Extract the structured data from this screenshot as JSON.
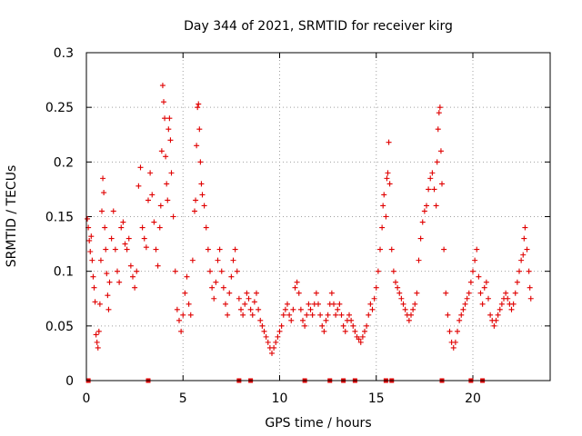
{
  "colors": {
    "series": "#e00000",
    "grid": "#a0a0a0",
    "frame": "#000000"
  },
  "chart_data": {
    "type": "scatter",
    "title": "Day 344 of 2021, SRMTID for receiver kirg",
    "xlabel": "GPS time / hours",
    "ylabel": "SRMTID / TECUs",
    "xlim": [
      0,
      24
    ],
    "ylim": [
      0,
      0.3
    ],
    "grid": true,
    "marker": "+",
    "x_ticks": [
      0,
      5,
      10,
      15,
      20
    ],
    "x_tick_labels": [
      "0",
      "5",
      "10",
      "15",
      "20"
    ],
    "y_ticks": [
      0,
      0.05,
      0.1,
      0.15,
      0.2,
      0.25,
      0.3
    ],
    "y_tick_labels": [
      "0",
      "0.05",
      "0.1",
      "0.15",
      "0.2",
      "0.25",
      "0.3"
    ],
    "series": [
      {
        "name": "SRMTID",
        "points": [
          [
            0.05,
            0.148
          ],
          [
            0.1,
            0.14
          ],
          [
            0.15,
            0.128
          ],
          [
            0.2,
            0.118
          ],
          [
            0.25,
            0.132
          ],
          [
            0.3,
            0.11
          ],
          [
            0.35,
            0.095
          ],
          [
            0.4,
            0.085
          ],
          [
            0.45,
            0.072
          ],
          [
            0.5,
            0.042
          ],
          [
            0.55,
            0.035
          ],
          [
            0.6,
            0.03
          ],
          [
            0.65,
            0.045
          ],
          [
            0.7,
            0.07
          ],
          [
            0.75,
            0.11
          ],
          [
            0.8,
            0.155
          ],
          [
            0.85,
            0.185
          ],
          [
            0.9,
            0.172
          ],
          [
            0.95,
            0.14
          ],
          [
            1.0,
            0.12
          ],
          [
            1.05,
            0.098
          ],
          [
            1.1,
            0.078
          ],
          [
            1.15,
            0.065
          ],
          [
            1.2,
            0.09
          ],
          [
            1.3,
            0.13
          ],
          [
            1.4,
            0.155
          ],
          [
            1.5,
            0.12
          ],
          [
            1.6,
            0.1
          ],
          [
            1.7,
            0.09
          ],
          [
            1.8,
            0.14
          ],
          [
            1.9,
            0.145
          ],
          [
            2.0,
            0.125
          ],
          [
            2.1,
            0.12
          ],
          [
            2.2,
            0.13
          ],
          [
            2.3,
            0.105
          ],
          [
            2.4,
            0.095
          ],
          [
            2.5,
            0.085
          ],
          [
            2.6,
            0.1
          ],
          [
            2.7,
            0.178
          ],
          [
            2.8,
            0.195
          ],
          [
            2.9,
            0.14
          ],
          [
            3.0,
            0.13
          ],
          [
            3.1,
            0.122
          ],
          [
            3.2,
            0.165
          ],
          [
            3.3,
            0.19
          ],
          [
            3.4,
            0.17
          ],
          [
            3.5,
            0.145
          ],
          [
            3.6,
            0.12
          ],
          [
            3.7,
            0.105
          ],
          [
            3.8,
            0.14
          ],
          [
            3.85,
            0.16
          ],
          [
            3.9,
            0.21
          ],
          [
            3.95,
            0.27
          ],
          [
            4.0,
            0.255
          ],
          [
            4.05,
            0.24
          ],
          [
            4.1,
            0.205
          ],
          [
            4.15,
            0.18
          ],
          [
            4.2,
            0.165
          ],
          [
            4.25,
            0.23
          ],
          [
            4.3,
            0.24
          ],
          [
            4.35,
            0.22
          ],
          [
            4.4,
            0.19
          ],
          [
            4.5,
            0.15
          ],
          [
            4.6,
            0.1
          ],
          [
            4.7,
            0.065
          ],
          [
            4.8,
            0.055
          ],
          [
            4.9,
            0.045
          ],
          [
            5.0,
            0.06
          ],
          [
            5.1,
            0.08
          ],
          [
            5.2,
            0.095
          ],
          [
            5.3,
            0.07
          ],
          [
            5.4,
            0.06
          ],
          [
            5.5,
            0.11
          ],
          [
            5.6,
            0.155
          ],
          [
            5.65,
            0.165
          ],
          [
            5.7,
            0.215
          ],
          [
            5.75,
            0.25
          ],
          [
            5.8,
            0.253
          ],
          [
            5.85,
            0.23
          ],
          [
            5.9,
            0.2
          ],
          [
            5.95,
            0.18
          ],
          [
            6.0,
            0.17
          ],
          [
            6.1,
            0.16
          ],
          [
            6.2,
            0.14
          ],
          [
            6.3,
            0.12
          ],
          [
            6.4,
            0.1
          ],
          [
            6.5,
            0.085
          ],
          [
            6.6,
            0.075
          ],
          [
            6.7,
            0.09
          ],
          [
            6.8,
            0.11
          ],
          [
            6.9,
            0.12
          ],
          [
            7.0,
            0.1
          ],
          [
            7.1,
            0.085
          ],
          [
            7.2,
            0.07
          ],
          [
            7.3,
            0.06
          ],
          [
            7.4,
            0.08
          ],
          [
            7.5,
            0.095
          ],
          [
            7.6,
            0.11
          ],
          [
            7.7,
            0.12
          ],
          [
            7.8,
            0.1
          ],
          [
            7.9,
            0.075
          ],
          [
            8.0,
            0.065
          ],
          [
            8.1,
            0.06
          ],
          [
            8.2,
            0.07
          ],
          [
            8.3,
            0.08
          ],
          [
            8.4,
            0.075
          ],
          [
            8.5,
            0.065
          ],
          [
            8.6,
            0.06
          ],
          [
            8.7,
            0.072
          ],
          [
            8.8,
            0.08
          ],
          [
            8.9,
            0.065
          ],
          [
            9.0,
            0.055
          ],
          [
            9.1,
            0.05
          ],
          [
            9.2,
            0.045
          ],
          [
            9.3,
            0.04
          ],
          [
            9.4,
            0.035
          ],
          [
            9.5,
            0.03
          ],
          [
            9.6,
            0.025
          ],
          [
            9.7,
            0.03
          ],
          [
            9.8,
            0.035
          ],
          [
            9.9,
            0.04
          ],
          [
            10.0,
            0.045
          ],
          [
            10.1,
            0.05
          ],
          [
            10.2,
            0.06
          ],
          [
            10.3,
            0.065
          ],
          [
            10.4,
            0.07
          ],
          [
            10.5,
            0.06
          ],
          [
            10.6,
            0.055
          ],
          [
            10.7,
            0.065
          ],
          [
            10.8,
            0.085
          ],
          [
            10.9,
            0.09
          ],
          [
            11.0,
            0.08
          ],
          [
            11.1,
            0.065
          ],
          [
            11.2,
            0.055
          ],
          [
            11.3,
            0.05
          ],
          [
            11.4,
            0.06
          ],
          [
            11.5,
            0.07
          ],
          [
            11.6,
            0.065
          ],
          [
            11.7,
            0.06
          ],
          [
            11.8,
            0.07
          ],
          [
            11.9,
            0.08
          ],
          [
            12.0,
            0.07
          ],
          [
            12.1,
            0.06
          ],
          [
            12.2,
            0.05
          ],
          [
            12.3,
            0.045
          ],
          [
            12.4,
            0.055
          ],
          [
            12.5,
            0.06
          ],
          [
            12.6,
            0.07
          ],
          [
            12.7,
            0.08
          ],
          [
            12.8,
            0.07
          ],
          [
            12.9,
            0.06
          ],
          [
            13.0,
            0.065
          ],
          [
            13.1,
            0.07
          ],
          [
            13.2,
            0.06
          ],
          [
            13.3,
            0.05
          ],
          [
            13.4,
            0.045
          ],
          [
            13.5,
            0.055
          ],
          [
            13.6,
            0.06
          ],
          [
            13.7,
            0.055
          ],
          [
            13.8,
            0.05
          ],
          [
            13.9,
            0.045
          ],
          [
            14.0,
            0.04
          ],
          [
            14.1,
            0.038
          ],
          [
            14.2,
            0.035
          ],
          [
            14.3,
            0.04
          ],
          [
            14.4,
            0.045
          ],
          [
            14.5,
            0.05
          ],
          [
            14.6,
            0.06
          ],
          [
            14.7,
            0.07
          ],
          [
            14.8,
            0.065
          ],
          [
            14.9,
            0.075
          ],
          [
            15.0,
            0.085
          ],
          [
            15.1,
            0.1
          ],
          [
            15.2,
            0.12
          ],
          [
            15.3,
            0.14
          ],
          [
            15.35,
            0.16
          ],
          [
            15.4,
            0.17
          ],
          [
            15.5,
            0.15
          ],
          [
            15.55,
            0.185
          ],
          [
            15.6,
            0.19
          ],
          [
            15.65,
            0.218
          ],
          [
            15.7,
            0.18
          ],
          [
            15.8,
            0.12
          ],
          [
            15.9,
            0.1
          ],
          [
            16.0,
            0.09
          ],
          [
            16.1,
            0.085
          ],
          [
            16.2,
            0.08
          ],
          [
            16.3,
            0.075
          ],
          [
            16.4,
            0.07
          ],
          [
            16.5,
            0.065
          ],
          [
            16.6,
            0.06
          ],
          [
            16.7,
            0.055
          ],
          [
            16.8,
            0.06
          ],
          [
            16.9,
            0.065
          ],
          [
            17.0,
            0.07
          ],
          [
            17.1,
            0.08
          ],
          [
            17.2,
            0.11
          ],
          [
            17.3,
            0.13
          ],
          [
            17.4,
            0.145
          ],
          [
            17.5,
            0.155
          ],
          [
            17.6,
            0.16
          ],
          [
            17.7,
            0.175
          ],
          [
            17.8,
            0.185
          ],
          [
            17.9,
            0.19
          ],
          [
            18.0,
            0.175
          ],
          [
            18.1,
            0.16
          ],
          [
            18.15,
            0.2
          ],
          [
            18.2,
            0.23
          ],
          [
            18.25,
            0.245
          ],
          [
            18.3,
            0.25
          ],
          [
            18.35,
            0.21
          ],
          [
            18.4,
            0.18
          ],
          [
            18.5,
            0.12
          ],
          [
            18.6,
            0.08
          ],
          [
            18.7,
            0.06
          ],
          [
            18.8,
            0.045
          ],
          [
            18.9,
            0.035
          ],
          [
            19.0,
            0.03
          ],
          [
            19.1,
            0.035
          ],
          [
            19.2,
            0.045
          ],
          [
            19.3,
            0.055
          ],
          [
            19.4,
            0.06
          ],
          [
            19.5,
            0.065
          ],
          [
            19.6,
            0.07
          ],
          [
            19.7,
            0.075
          ],
          [
            19.8,
            0.08
          ],
          [
            19.9,
            0.09
          ],
          [
            20.0,
            0.1
          ],
          [
            20.1,
            0.11
          ],
          [
            20.2,
            0.12
          ],
          [
            20.3,
            0.095
          ],
          [
            20.4,
            0.08
          ],
          [
            20.5,
            0.07
          ],
          [
            20.6,
            0.085
          ],
          [
            20.7,
            0.09
          ],
          [
            20.8,
            0.075
          ],
          [
            20.9,
            0.06
          ],
          [
            21.0,
            0.055
          ],
          [
            21.1,
            0.05
          ],
          [
            21.2,
            0.055
          ],
          [
            21.3,
            0.06
          ],
          [
            21.4,
            0.065
          ],
          [
            21.5,
            0.07
          ],
          [
            21.6,
            0.075
          ],
          [
            21.7,
            0.08
          ],
          [
            21.8,
            0.075
          ],
          [
            21.9,
            0.07
          ],
          [
            22.0,
            0.065
          ],
          [
            22.1,
            0.07
          ],
          [
            22.2,
            0.08
          ],
          [
            22.3,
            0.09
          ],
          [
            22.4,
            0.1
          ],
          [
            22.5,
            0.11
          ],
          [
            22.6,
            0.115
          ],
          [
            22.65,
            0.13
          ],
          [
            22.7,
            0.14
          ],
          [
            22.8,
            0.12
          ],
          [
            22.9,
            0.1
          ],
          [
            22.95,
            0.085
          ],
          [
            23.0,
            0.075
          ]
        ],
        "zero_markers": [
          0.1,
          3.2,
          7.9,
          8.5,
          11.3,
          12.6,
          13.3,
          13.9,
          15.5,
          15.8,
          18.4,
          19.9,
          20.5
        ]
      }
    ]
  }
}
